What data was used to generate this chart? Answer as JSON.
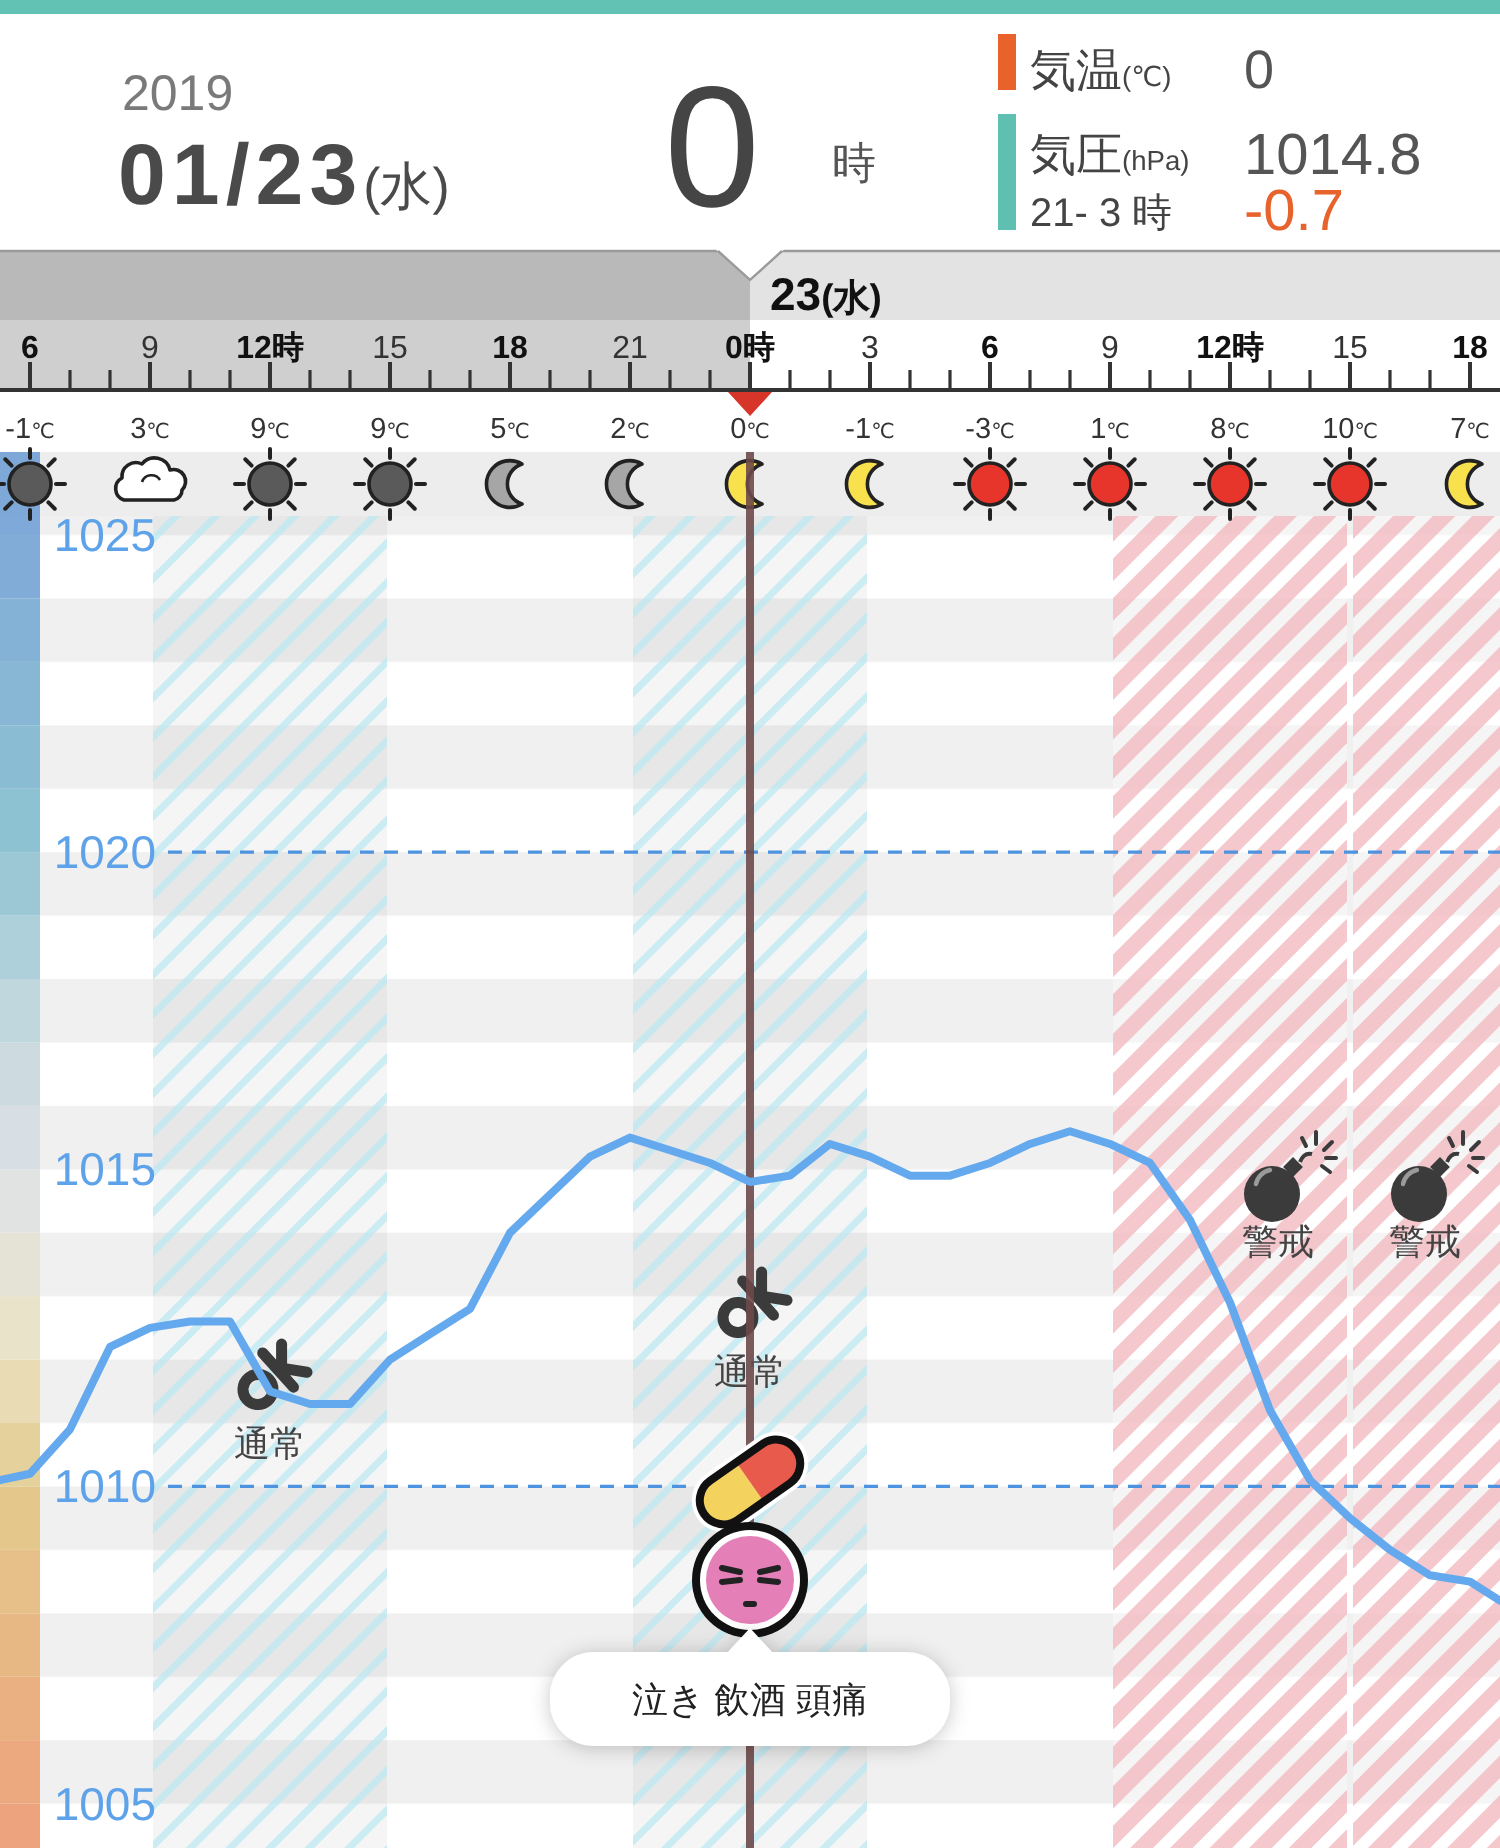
{
  "chart_data": [
    {
      "type": "other",
      "annotations": [
        "2019",
        "01/23(水)",
        "0",
        "時",
        "気温(℃)",
        "0",
        "気圧(hPa)",
        "1014.8",
        "21- 3 時",
        "-0.7"
      ]
    },
    {
      "type": "line",
      "x": [
        "2019-01-22T05:15",
        "2019-01-22T06:00",
        "2019-01-22T07:00",
        "2019-01-22T08:00",
        "2019-01-22T09:00",
        "2019-01-22T10:00",
        "2019-01-22T11:00",
        "2019-01-22T12:00",
        "2019-01-22T13:00",
        "2019-01-22T14:00",
        "2019-01-22T15:00",
        "2019-01-22T16:00",
        "2019-01-22T17:00",
        "2019-01-22T18:00",
        "2019-01-22T19:00",
        "2019-01-22T20:00",
        "2019-01-22T21:00",
        "2019-01-22T22:00",
        "2019-01-22T23:00",
        "2019-01-23T00:00",
        "2019-01-23T01:00",
        "2019-01-23T02:00",
        "2019-01-23T03:00",
        "2019-01-23T04:00",
        "2019-01-23T05:00",
        "2019-01-23T06:00",
        "2019-01-23T07:00",
        "2019-01-23T08:00",
        "2019-01-23T09:00",
        "2019-01-23T10:00",
        "2019-01-23T11:00",
        "2019-01-23T12:00",
        "2019-01-23T13:00",
        "2019-01-23T14:00",
        "2019-01-23T15:00",
        "2019-01-23T16:00",
        "2019-01-23T17:00",
        "2019-01-23T18:00",
        "2019-01-23T18:45"
      ],
      "series": [
        {
          "color": "#64a9ee",
          "values": [
            1010.1,
            1010.2,
            1010.9,
            1012.2,
            1012.5,
            1012.6,
            1012.6,
            1011.5,
            1011.3,
            1011.3,
            1012.0,
            1012.4,
            1012.8,
            1014.0,
            1014.6,
            1015.2,
            1015.5,
            1015.3,
            1015.1,
            1014.8,
            1014.9,
            1015.4,
            1015.2,
            1014.9,
            1014.9,
            1015.1,
            1015.4,
            1015.6,
            1015.4,
            1015.1,
            1014.2,
            1012.9,
            1011.2,
            1010.1,
            1009.5,
            1009.0,
            1008.6,
            1008.5,
            1008.2
          ]
        }
      ],
      "xlim": [
        "2019-01-22T05:15",
        "2019-01-23T18:45"
      ],
      "xticks": [
        {
          "value": "2019-01-22T06:00",
          "label": "6"
        },
        {
          "value": "2019-01-22T09:00",
          "label": "9"
        },
        {
          "value": "2019-01-22T12:00",
          "label": "12時"
        },
        {
          "value": "2019-01-22T15:00",
          "label": "15"
        },
        {
          "value": "2019-01-22T18:00",
          "label": "18"
        },
        {
          "value": "2019-01-22T21:00",
          "label": "21"
        },
        {
          "value": "2019-01-23T00:00",
          "label": "0時"
        },
        {
          "value": "2019-01-23T03:00",
          "label": "3"
        },
        {
          "value": "2019-01-23T06:00",
          "label": "6"
        },
        {
          "value": "2019-01-23T09:00",
          "label": "9"
        },
        {
          "value": "2019-01-23T12:00",
          "label": "12時"
        },
        {
          "value": "2019-01-23T15:00",
          "label": "15"
        },
        {
          "value": "2019-01-23T18:00",
          "label": "18"
        }
      ],
      "ylim": [
        1004.3,
        1025.3
      ],
      "yticks": [
        1005,
        1010,
        1015,
        1020,
        1025
      ],
      "ref_lines": [
        {
          "axis": "y",
          "value": 1020,
          "color": "#4d93e0",
          "line_style": "dashed"
        },
        {
          "axis": "y",
          "value": 1010,
          "color": "#4d93e0",
          "line_style": "dashed"
        },
        {
          "axis": "x",
          "value": "2019-01-23T00:00",
          "color": "#6d4949"
        }
      ],
      "bands": [
        {
          "axis": "x",
          "from": "2019-01-22T09:00",
          "to": "2019-01-22T15:00",
          "label": "通常",
          "color": "#bfe9f3"
        },
        {
          "axis": "x",
          "from": "2019-01-22T21:00",
          "to": "2019-01-23T03:00",
          "label": "通常",
          "color": "#bfe9f3"
        },
        {
          "axis": "x",
          "from": "2019-01-23T09:00",
          "to": "2019-01-23T15:00",
          "label": "警戒",
          "color": "#f2bfc5"
        },
        {
          "axis": "x",
          "from": "2019-01-23T15:00",
          "to": "2019-01-23T18:45",
          "label": "警戒",
          "color": "#f2bfc5"
        }
      ],
      "annotations": [
        "23(水)",
        "-1℃",
        "3℃",
        "9℃",
        "9℃",
        "5℃",
        "2℃",
        "0℃",
        "-1℃",
        "-3℃",
        "1℃",
        "8℃",
        "10℃",
        "7℃",
        {
          "text": "泣き 飲酒 頭痛",
          "x": "2019-01-23T00:00"
        }
      ]
    }
  ]
}
